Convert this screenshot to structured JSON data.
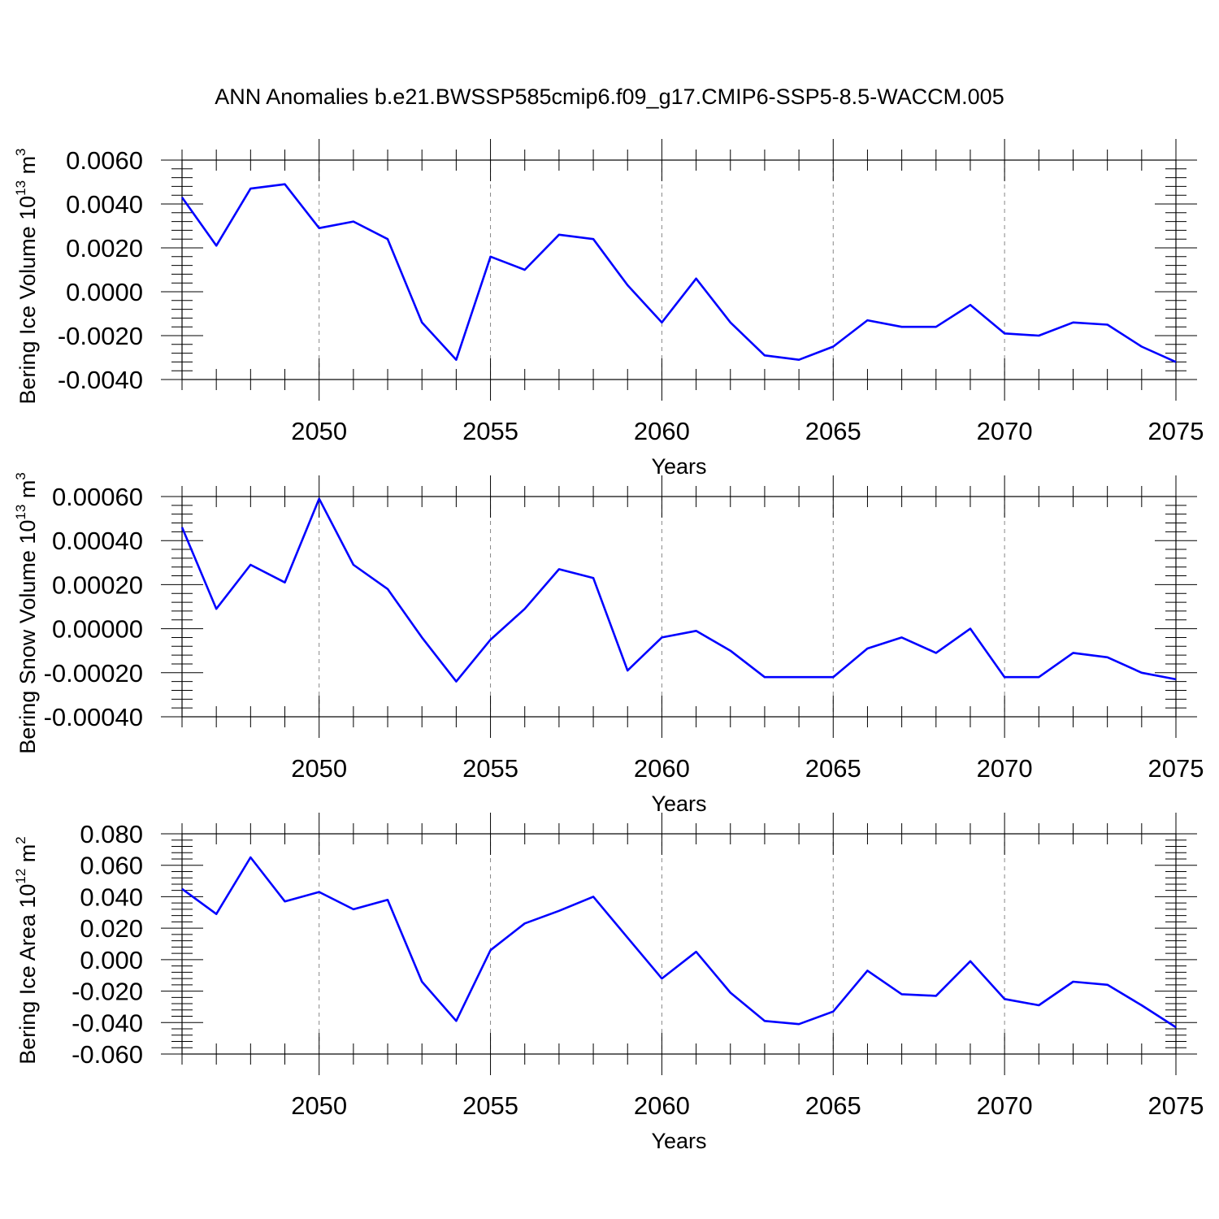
{
  "title": "ANN Anomalies b.e21.BWSSP585cmip6.f09_g17.CMIP6-SSP5-8.5-WACCM.005",
  "colors": {
    "line": "#0000ff",
    "axis": "#000000",
    "gridline": "#888888"
  },
  "chart_data": [
    {
      "type": "line",
      "title": "",
      "xlabel": "Years",
      "ylabel": "Bering Ice Volume 10",
      "ylabel_exponent": "13",
      "ylabel_unit": "m",
      "ylabel_unit_exponent": "3",
      "xlim": [
        2046,
        2075
      ],
      "ylim": [
        -0.004,
        0.006
      ],
      "grid": "vertical dashed at major x ticks",
      "x_ticks": [
        2050,
        2055,
        2060,
        2065,
        2070,
        2075
      ],
      "x_tick_labels": [
        "2050",
        "2055",
        "2060",
        "2065",
        "2070",
        "2075"
      ],
      "y_ticks": [
        0.006,
        0.004,
        0.002,
        0.0,
        -0.002,
        -0.004
      ],
      "y_tick_labels": [
        "0.0060",
        "0.0040",
        "0.0020",
        "0.0000",
        "-0.0020",
        "-0.0040"
      ],
      "x": [
        2046,
        2047,
        2048,
        2049,
        2050,
        2051,
        2052,
        2053,
        2054,
        2055,
        2056,
        2057,
        2058,
        2059,
        2060,
        2061,
        2062,
        2063,
        2064,
        2065,
        2066,
        2067,
        2068,
        2069,
        2070,
        2071,
        2072,
        2073,
        2074,
        2075
      ],
      "series": [
        {
          "values": [
            0.0043,
            0.0021,
            0.0047,
            0.0049,
            0.0029,
            0.0032,
            0.0024,
            -0.0014,
            -0.0031,
            0.0016,
            0.001,
            0.0026,
            0.0024,
            0.0003,
            -0.0014,
            0.0006,
            -0.0014,
            -0.0029,
            -0.0031,
            -0.0025,
            -0.0013,
            -0.0016,
            -0.0016,
            -0.0006,
            -0.0019,
            -0.002,
            -0.0014,
            -0.0015,
            -0.0025,
            -0.0032
          ]
        }
      ]
    },
    {
      "type": "line",
      "title": "",
      "xlabel": "Years",
      "ylabel": "Bering Snow Volume 10",
      "ylabel_exponent": "13",
      "ylabel_unit": "m",
      "ylabel_unit_exponent": "3",
      "xlim": [
        2046,
        2075
      ],
      "ylim": [
        -0.0004,
        0.0006
      ],
      "grid": "vertical dashed at major x ticks",
      "x_ticks": [
        2050,
        2055,
        2060,
        2065,
        2070,
        2075
      ],
      "x_tick_labels": [
        "2050",
        "2055",
        "2060",
        "2065",
        "2070",
        "2075"
      ],
      "y_ticks": [
        0.0006,
        0.0004,
        0.0002,
        0.0,
        -0.0002,
        -0.0004
      ],
      "y_tick_labels": [
        "0.00060",
        "0.00040",
        "0.00020",
        "0.00000",
        "-0.00020",
        "-0.00040"
      ],
      "x": [
        2046,
        2047,
        2048,
        2049,
        2050,
        2051,
        2052,
        2053,
        2054,
        2055,
        2056,
        2057,
        2058,
        2059,
        2060,
        2061,
        2062,
        2063,
        2064,
        2065,
        2066,
        2067,
        2068,
        2069,
        2070,
        2071,
        2072,
        2073,
        2074,
        2075
      ],
      "series": [
        {
          "values": [
            0.00046,
            9e-05,
            0.00029,
            0.00021,
            0.00059,
            0.00029,
            0.00018,
            -4e-05,
            -0.00024,
            -5e-05,
            9e-05,
            0.00027,
            0.00023,
            -0.00019,
            -4e-05,
            -1e-05,
            -0.0001,
            -0.00022,
            -0.00022,
            -0.00022,
            -9e-05,
            -4e-05,
            -0.00011,
            0.0,
            -0.00022,
            -0.00022,
            -0.00011,
            -0.00013,
            -0.0002,
            -0.00023
          ]
        }
      ]
    },
    {
      "type": "line",
      "title": "",
      "xlabel": "Years",
      "ylabel": "Bering Ice Area 10",
      "ylabel_exponent": "12",
      "ylabel_unit": "m",
      "ylabel_unit_exponent": "2",
      "xlim": [
        2046,
        2075
      ],
      "ylim": [
        -0.06,
        0.08
      ],
      "grid": "vertical dashed at major x ticks",
      "x_ticks": [
        2050,
        2055,
        2060,
        2065,
        2070,
        2075
      ],
      "x_tick_labels": [
        "2050",
        "2055",
        "2060",
        "2065",
        "2070",
        "2075"
      ],
      "y_ticks": [
        0.08,
        0.06,
        0.04,
        0.02,
        0.0,
        -0.02,
        -0.04,
        -0.06
      ],
      "y_tick_labels": [
        "0.080",
        "0.060",
        "0.040",
        "0.020",
        "0.000",
        "-0.020",
        "-0.040",
        "-0.060"
      ],
      "x": [
        2046,
        2047,
        2048,
        2049,
        2050,
        2051,
        2052,
        2053,
        2054,
        2055,
        2056,
        2057,
        2058,
        2059,
        2060,
        2061,
        2062,
        2063,
        2064,
        2065,
        2066,
        2067,
        2068,
        2069,
        2070,
        2071,
        2072,
        2073,
        2074,
        2075
      ],
      "series": [
        {
          "values": [
            0.045,
            0.029,
            0.065,
            0.037,
            0.043,
            0.032,
            0.038,
            -0.014,
            -0.039,
            0.006,
            0.023,
            0.031,
            0.04,
            0.014,
            -0.012,
            0.005,
            -0.021,
            -0.039,
            -0.041,
            -0.033,
            -0.007,
            -0.022,
            -0.023,
            -0.001,
            -0.025,
            -0.029,
            -0.014,
            -0.016,
            -0.029,
            -0.043
          ]
        }
      ]
    }
  ]
}
